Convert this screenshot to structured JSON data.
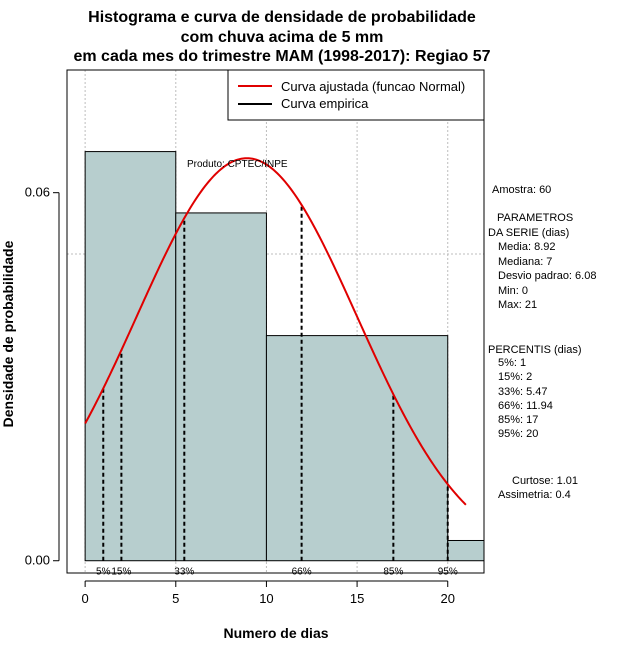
{
  "chart_data": {
    "type": "bar",
    "title_lines": [
      "Histograma e curva de densidade de probabilidade",
      "com chuva acima de 5 mm",
      "em cada mes do trimestre MAM (1998-2017): Regiao 57"
    ],
    "xlabel": "Numero de dias",
    "ylabel": "Densidade de probabilidade",
    "xlim": [
      -1,
      22
    ],
    "ylim": [
      -0.002,
      0.08
    ],
    "x_ticks": [
      0,
      5,
      10,
      15,
      20
    ],
    "x_tick_labels": [
      "0",
      "5",
      "10",
      "15",
      "20"
    ],
    "y_ticks": [
      0.0,
      0.06
    ],
    "y_tick_labels": [
      "0.00",
      "0.06"
    ],
    "grid_x": [
      0,
      5,
      10,
      15,
      20
    ],
    "grid_y": [
      0.05,
      0.1
    ],
    "histogram": {
      "color": "#b7cece",
      "bins": [
        {
          "from": 0,
          "to": 5,
          "density": 0.0667
        },
        {
          "from": 5,
          "to": 10,
          "density": 0.0567
        },
        {
          "from": 10,
          "to": 20,
          "density": 0.0367
        },
        {
          "from": 20,
          "to": 22,
          "density": 0.0033
        }
      ]
    },
    "fitted_curve": {
      "name": "Curva ajustada (funcao Normal)",
      "color": "#e00000",
      "mean": 8.92,
      "sd": 6.08,
      "x_range": [
        0,
        21
      ]
    },
    "empirical_legend": {
      "name": "Curva empirica",
      "color": "#000000"
    },
    "legend_position": "top-right",
    "percentile_lines": [
      {
        "x": 1,
        "label": "5%"
      },
      {
        "x": 2,
        "label": "15%"
      },
      {
        "x": 5.47,
        "label": "33%"
      },
      {
        "x": 11.94,
        "label": "66%"
      },
      {
        "x": 17,
        "label": "85%"
      },
      {
        "x": 20,
        "label": "95%"
      }
    ],
    "annotation": "Produto: CPTEC/INPE",
    "side_panel": {
      "amostra": "Amostra: 60",
      "parametros": [
        "PARAMETROS",
        "DA SERIE (dias)",
        "Media: 8.92",
        "Mediana: 7",
        "Desvio padrao: 6.08",
        "Min: 0",
        "Max: 21"
      ],
      "percentis": [
        "PERCENTIS (dias)",
        "5%: 1",
        "15%: 2",
        "33%: 5.47",
        "66%: 11.94",
        "85%: 17",
        "95%: 20"
      ],
      "shape": [
        "Curtose: 1.01",
        "Assimetria: 0.4"
      ]
    }
  }
}
